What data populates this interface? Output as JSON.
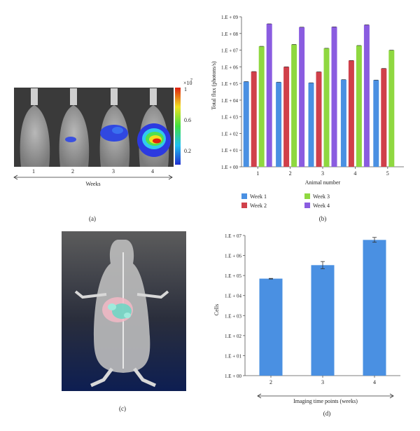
{
  "panels": {
    "a": {
      "caption": "(a)",
      "xaxis_label": "Weeks",
      "week_labels": [
        "1",
        "2",
        "3",
        "4"
      ],
      "colorbar": {
        "exponent_label": "×10",
        "exponent": "7",
        "ticks": [
          "1",
          "0.6",
          "0.2"
        ]
      }
    },
    "b": {
      "caption": "(b)"
    },
    "c": {
      "caption": "(c)"
    },
    "d": {
      "caption": "(d)"
    }
  },
  "chart_data": [
    {
      "id": "b",
      "type": "bar",
      "xlabel": "Animal number",
      "ylabel": "Total flux (photons/s)",
      "yscale": "log",
      "ylim": [
        1,
        1000000000
      ],
      "ytick_labels": [
        "1.E + 00",
        "1.E + 01",
        "1.E + 02",
        "1.E + 03",
        "1.E + 04",
        "1.E + 05",
        "1.E + 06",
        "1.E + 07",
        "1.E + 08",
        "1.E + 09"
      ],
      "categories": [
        "1",
        "2",
        "3",
        "4",
        "5"
      ],
      "series": [
        {
          "name": "Week 1",
          "color": "#4a90e2",
          "values": [
            130000,
            120000,
            110000,
            170000,
            160000
          ]
        },
        {
          "name": "Week 2",
          "color": "#d0404a",
          "values": [
            520000,
            1000000,
            500000,
            2400000,
            800000
          ]
        },
        {
          "name": "Week 3",
          "color": "#8fd840",
          "values": [
            17000000,
            22000000,
            13000000,
            19000000,
            10000000
          ]
        },
        {
          "name": "Week 4",
          "color": "#8a5ce0",
          "values": [
            380000000,
            240000000,
            250000000,
            330000000,
            null
          ]
        }
      ],
      "legend_position": "bottom",
      "grid": false
    },
    {
      "id": "d",
      "type": "bar",
      "xlabel": "Imaging time points (weeks)",
      "ylabel": "Cells",
      "yscale": "log",
      "ylim": [
        1,
        10000000
      ],
      "ytick_labels": [
        "1.E + 00",
        "1.E + 01",
        "1.E + 02",
        "1.E + 03",
        "1.E + 04",
        "1.E + 05",
        "1.E + 06",
        "1.E + 07"
      ],
      "categories": [
        "2",
        "3",
        "4"
      ],
      "series": [
        {
          "color": "#4a90e2",
          "values": [
            70000,
            330000,
            6000000
          ],
          "err_low": [
            67000,
            220000,
            4600000
          ],
          "err_high": [
            72000,
            500000,
            8000000
          ]
        }
      ],
      "grid": false
    }
  ]
}
